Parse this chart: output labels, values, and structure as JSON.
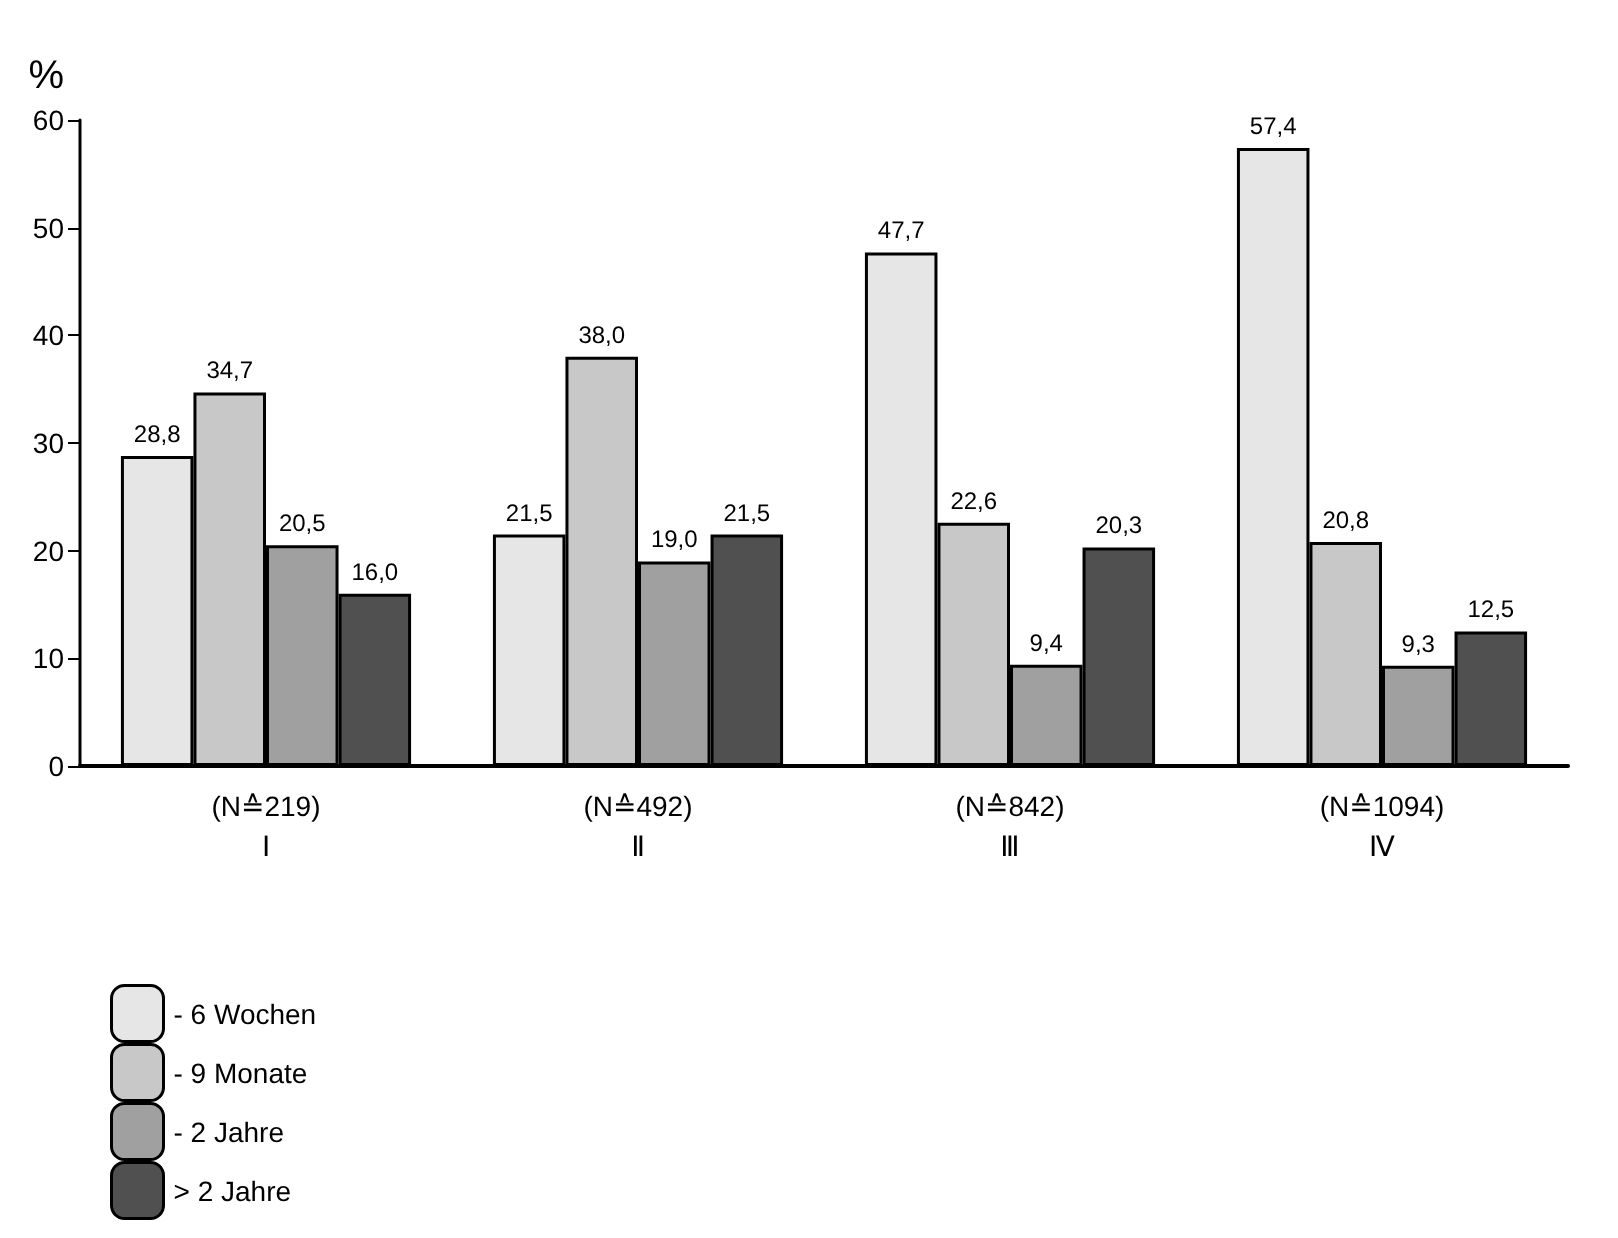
{
  "chart_data": {
    "type": "bar",
    "ylabel": "%",
    "categories": [
      "(N≙219)\nⅠ",
      "(N≙492)\nⅡ",
      "(N≙842)\nⅢ",
      "(N≙1094)\nⅣ"
    ],
    "series": [
      {
        "name": "- 6 Wochen",
        "color": "#e6e6e6",
        "values": [
          28.8,
          21.5,
          47.7,
          57.4
        ],
        "value_labels": [
          "28,8",
          "21,5",
          "47,7",
          "57,4"
        ]
      },
      {
        "name": "- 9 Monate",
        "color": "#c8c8c8",
        "values": [
          34.7,
          38.0,
          22.6,
          20.8
        ],
        "value_labels": [
          "34,7",
          "38,0",
          "22,6",
          "20,8"
        ]
      },
      {
        "name": "- 2 Jahre",
        "color": "#a0a0a0",
        "values": [
          20.5,
          19.0,
          9.4,
          9.3
        ],
        "value_labels": [
          "20,5",
          "19,0",
          "9,4",
          "9,3"
        ]
      },
      {
        "name": "> 2 Jahre",
        "color": "#505050",
        "values": [
          16.0,
          21.5,
          20.3,
          12.5
        ],
        "value_labels": [
          "16,0",
          "21,5",
          "20,3",
          "12,5"
        ]
      }
    ],
    "ylim": [
      0,
      60
    ],
    "yticks": [
      0,
      10,
      20,
      30,
      40,
      50,
      60
    ],
    "grid": false,
    "legend": "bottom left"
  }
}
